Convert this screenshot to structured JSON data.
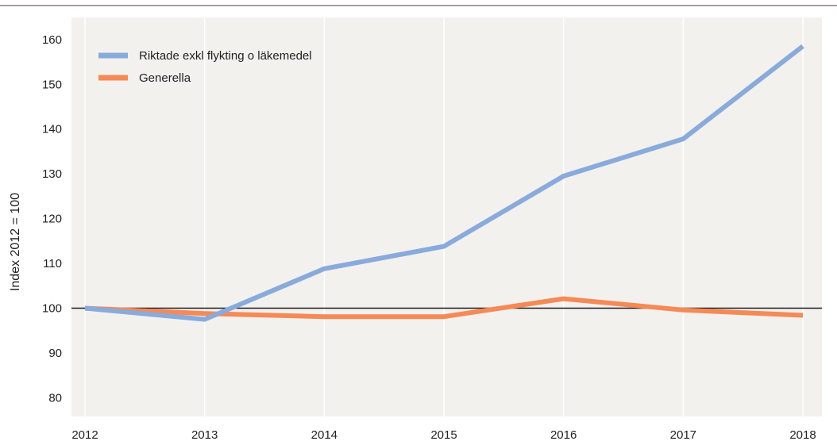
{
  "chart_data": {
    "type": "line",
    "title": "",
    "xlabel": "",
    "ylabel": "Index 2012 = 100",
    "x": [
      "2012",
      "2013",
      "2014",
      "2015",
      "2016",
      "2017",
      "2018"
    ],
    "yticks": [
      "80",
      "90",
      "100",
      "110",
      "120",
      "130",
      "140",
      "150",
      "160"
    ],
    "ylim": [
      75,
      163
    ],
    "reference_line": 100,
    "grid": "vertical",
    "legend_position": "top-left",
    "series": [
      {
        "name": "Riktade exkl flykting o läkemedel",
        "color": "#88abdb",
        "values": [
          100,
          97.5,
          108.8,
          113.8,
          129.5,
          137.8,
          158.5
        ]
      },
      {
        "name": "Generella",
        "color": "#f58a57",
        "values": [
          100,
          98.8,
          98.1,
          98.1,
          102.1,
          99.6,
          98.4
        ]
      }
    ],
    "colors": {
      "plot_background": "#f3f1ee",
      "gridline": "#ffffff",
      "reference_line": "#1a1a1a",
      "top_rule": "#8b7f78"
    }
  }
}
